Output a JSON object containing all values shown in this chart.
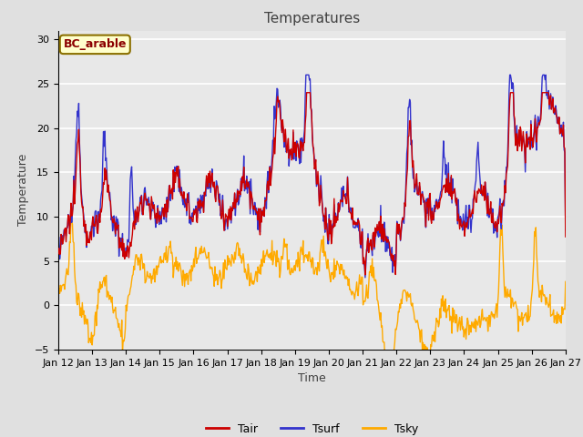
{
  "title": "Temperatures",
  "xlabel": "Time",
  "ylabel": "Temperature",
  "annotation": "BC_arable",
  "ylim": [
    -5,
    31
  ],
  "yticks": [
    -5,
    0,
    5,
    10,
    15,
    20,
    25,
    30
  ],
  "x_labels": [
    "Jan 12",
    "Jan 13",
    "Jan 14",
    "Jan 15",
    "Jan 16",
    "Jan 17",
    "Jan 18",
    "Jan 19",
    "Jan 20",
    "Jan 21",
    "Jan 22",
    "Jan 23",
    "Jan 24",
    "Jan 25",
    "Jan 26",
    "Jan 27"
  ],
  "legend_labels": [
    "Tair",
    "Tsurf",
    "Tsky"
  ],
  "line_colors": [
    "#cc0000",
    "#3333cc",
    "#ffaa00"
  ],
  "bg_color": "#d8d8d8",
  "bg_color2": "#e8e8e8",
  "annotation_bg": "#ffffcc",
  "annotation_color": "#8b0000",
  "annotation_border": "#8b7000",
  "grid_color": "#c0c0c0",
  "title_color": "#404040",
  "fig_color": "#e0e0e0"
}
